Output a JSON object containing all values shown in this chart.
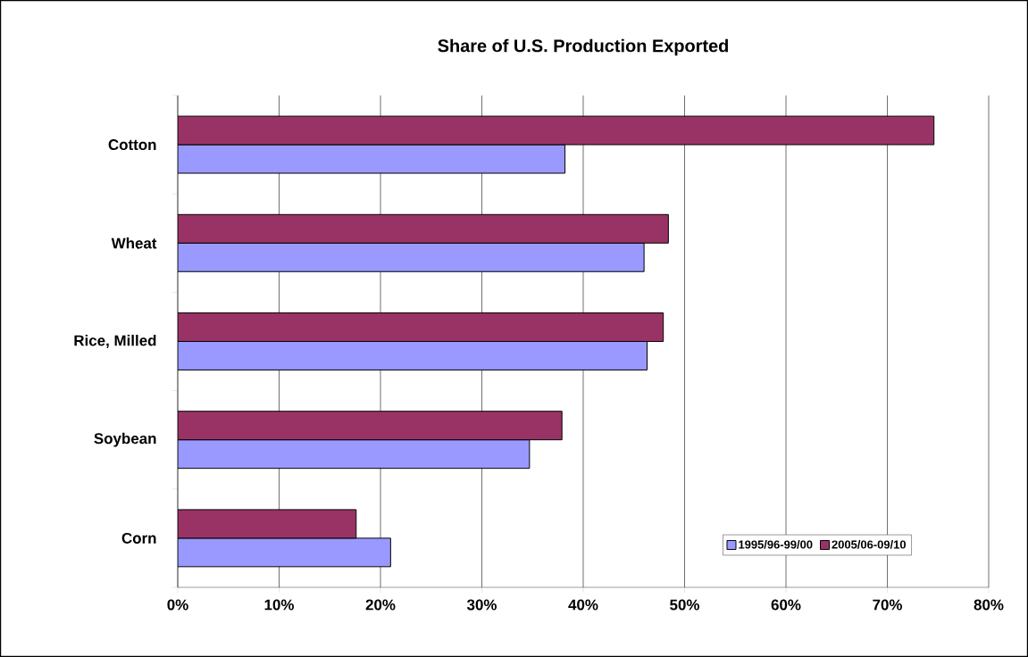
{
  "chart_data": {
    "type": "bar",
    "orientation": "horizontal",
    "title": "Share of U.S. Production Exported",
    "categories": [
      "Cotton",
      "Wheat",
      "Rice, Milled",
      "Soybean",
      "Corn"
    ],
    "series": [
      {
        "name": "1995/96-99/00",
        "color": "#9999ff",
        "values": [
          38.2,
          46.0,
          46.3,
          34.7,
          21.0
        ]
      },
      {
        "name": "2005/06-09/10",
        "color": "#993366",
        "values": [
          74.6,
          48.4,
          47.9,
          37.9,
          17.6
        ]
      }
    ],
    "xlim": [
      0,
      80
    ],
    "xticks": [
      {
        "value": 0,
        "label": "0%"
      },
      {
        "value": 10,
        "label": "10%"
      },
      {
        "value": 20,
        "label": "20%"
      },
      {
        "value": 30,
        "label": "30%"
      },
      {
        "value": 40,
        "label": "40%"
      },
      {
        "value": 50,
        "label": "50%"
      },
      {
        "value": 60,
        "label": "60%"
      },
      {
        "value": 70,
        "label": "70%"
      },
      {
        "value": 80,
        "label": "80%"
      }
    ],
    "grid": "x",
    "legend": "bottom right"
  }
}
